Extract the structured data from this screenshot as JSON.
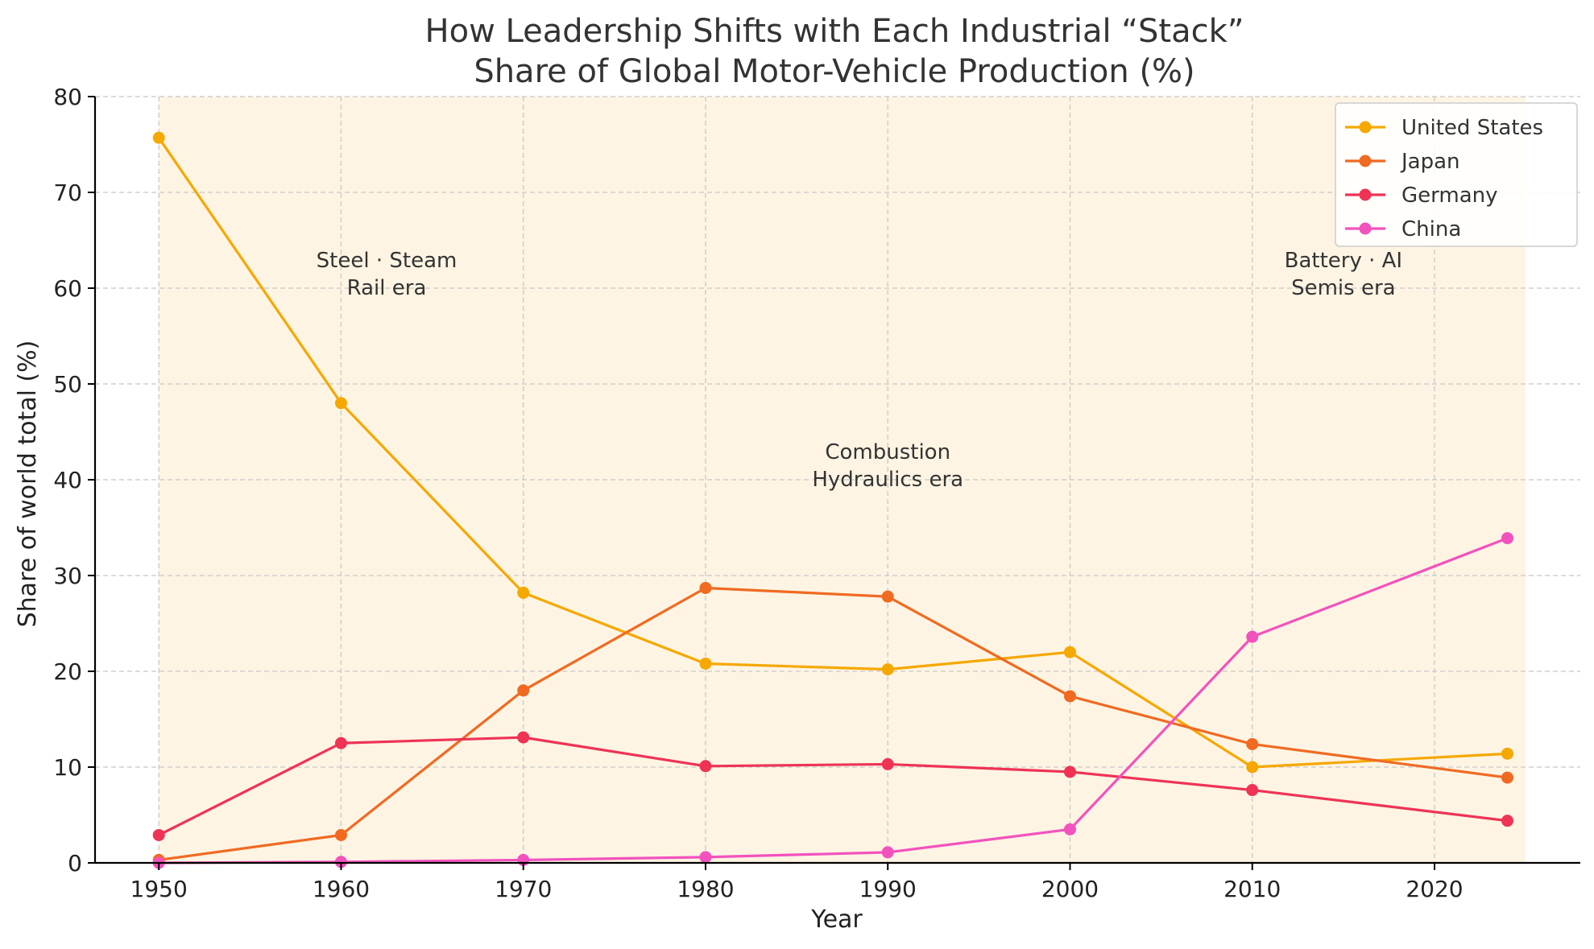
{
  "chart_data": {
    "type": "line",
    "title": "How Leadership Shifts with Each Industrial “Stack”",
    "subtitle": "Share of Global Motor-Vehicle Production (%)",
    "xlabel": "Year",
    "ylabel": "Share of world total (%)",
    "xlim": [
      1946.5,
      2028
    ],
    "ylim": [
      0,
      80
    ],
    "x_ticks": [
      1950,
      1960,
      1970,
      1980,
      1990,
      2000,
      2010,
      2020
    ],
    "y_ticks": [
      0,
      10,
      20,
      30,
      40,
      50,
      60,
      70,
      80
    ],
    "grid": true,
    "legend_position": "top-right",
    "x": [
      1950,
      1960,
      1970,
      1980,
      1990,
      2000,
      2010,
      2024
    ],
    "series": [
      {
        "name": "United States",
        "color": "#f5a800",
        "values": [
          75.7,
          48.0,
          28.2,
          20.8,
          20.2,
          22.0,
          10.0,
          11.4
        ]
      },
      {
        "name": "Japan",
        "color": "#f06a22",
        "values": [
          0.3,
          2.9,
          18.0,
          28.7,
          27.8,
          17.4,
          12.4,
          8.9
        ]
      },
      {
        "name": "Germany",
        "color": "#ee3355",
        "values": [
          2.9,
          12.5,
          13.1,
          10.1,
          10.3,
          9.5,
          7.6,
          4.4
        ]
      },
      {
        "name": "China",
        "color": "#f252be",
        "values": [
          0.0,
          0.1,
          0.3,
          0.6,
          1.1,
          3.5,
          23.6,
          33.9
        ]
      }
    ],
    "background_span": {
      "from": 1950,
      "to": 2025,
      "color": "#fdf4e3"
    },
    "eras": [
      {
        "line1": "Steel · Steam",
        "line2": "Rail era",
        "x": 1962.5,
        "y": 62
      },
      {
        "line1": "Combustion",
        "line2": "Hydraulics era",
        "x": 1990,
        "y": 42
      },
      {
        "line1": "Battery · AI",
        "line2": "Semis era",
        "x": 2015,
        "y": 62
      }
    ]
  }
}
